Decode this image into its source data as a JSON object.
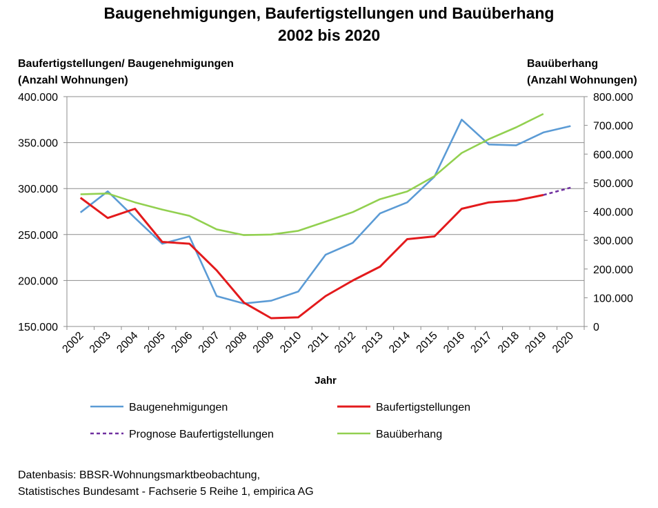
{
  "chart_data": {
    "type": "line",
    "title": [
      "Baugenehmigungen, Baufertigstellungen und Bauüberhang",
      "2002 bis 2020"
    ],
    "ylabel_left": [
      "Baufertigstellungen/ Baugenehmigungen",
      "(Anzahl Wohnungen)"
    ],
    "ylabel_right": [
      "Bauüberhang",
      "(Anzahl Wohnungen)"
    ],
    "xlabel": "Jahr",
    "categories": [
      "2002",
      "2003",
      "2004",
      "2005",
      "2006",
      "2007",
      "2008",
      "2009",
      "2010",
      "2011",
      "2012",
      "2013",
      "2014",
      "2015",
      "2016",
      "2017",
      "2018",
      "2019",
      "2020"
    ],
    "ylim_left": [
      150000,
      400000
    ],
    "ylim_right": [
      0,
      800000
    ],
    "yticks_left": [
      "150.000",
      "200.000",
      "250.000",
      "300.000",
      "350.000",
      "400.000"
    ],
    "yticks_right": [
      "0",
      "100.000",
      "200.000",
      "300.000",
      "400.000",
      "500.000",
      "600.000",
      "700.000",
      "800.000"
    ],
    "grid": true,
    "legend_position": "bottom",
    "series": [
      {
        "name": "Baugenehmigungen",
        "axis": "left",
        "color": "#5b9bd5",
        "style": "solid",
        "values": [
          274000,
          297000,
          268000,
          240000,
          248000,
          183000,
          175000,
          178000,
          188000,
          228000,
          241000,
          273000,
          285000,
          313000,
          375000,
          348000,
          347000,
          361000,
          368000
        ]
      },
      {
        "name": "Baufertigstellungen",
        "axis": "left",
        "color": "#e31a1c",
        "style": "solid",
        "values": [
          290000,
          268000,
          278000,
          242000,
          240000,
          211000,
          176000,
          159000,
          160000,
          183000,
          200000,
          215000,
          245000,
          248000,
          278000,
          285000,
          287000,
          293000,
          null
        ]
      },
      {
        "name": "Prognose Baufertigstellungen",
        "axis": "left",
        "color": "#7030a0",
        "style": "dashed",
        "values": [
          null,
          null,
          null,
          null,
          null,
          null,
          null,
          null,
          null,
          null,
          null,
          null,
          null,
          null,
          null,
          null,
          null,
          293000,
          301000
        ]
      },
      {
        "name": "Bauüberhang",
        "axis": "right",
        "color": "#92d050",
        "style": "solid",
        "values": [
          460000,
          463000,
          432000,
          407000,
          385000,
          338000,
          318000,
          320000,
          333000,
          365000,
          398000,
          443000,
          470000,
          523000,
          604000,
          652000,
          693000,
          740000,
          null
        ]
      }
    ]
  },
  "footnote": [
    "Datenbasis: BBSR-Wohnungsmarktbeobachtung,",
    "Statistisches Bundesamt - Fachserie 5 Reihe 1, empirica AG"
  ]
}
